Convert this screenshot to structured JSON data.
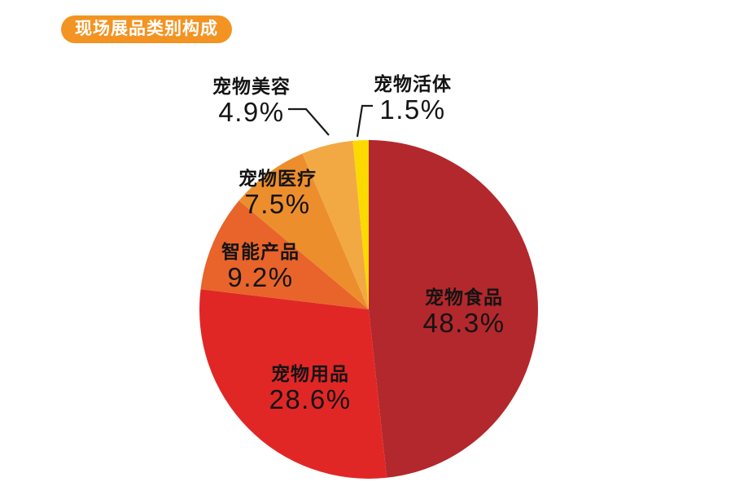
{
  "title_badge": {
    "text": "现场展品类别构成",
    "bg_color": "#F39322",
    "text_color": "#FFFFFF"
  },
  "colors": {
    "background": "#FFFFFF",
    "label_text": "#141414",
    "leader_line": "#1A1A1A"
  },
  "chart_data": {
    "type": "pie",
    "title": "现场展品类别构成",
    "legend": "none",
    "start_angle_deg": 0,
    "direction": "clockwise",
    "label_style": "category name above percentage, black text; two small slices use leader lines",
    "slices": [
      {
        "id": "pet-food",
        "name": "宠物食品",
        "value": 48.3,
        "pct_label": "48.3%",
        "color": "#B3282C"
      },
      {
        "id": "pet-supplies",
        "name": "宠物用品",
        "value": 28.6,
        "pct_label": "28.6%",
        "color": "#E12726"
      },
      {
        "id": "smart-products",
        "name": "智能产品",
        "value": 9.2,
        "pct_label": "9.2%",
        "color": "#E8642A"
      },
      {
        "id": "pet-medical",
        "name": "宠物医疗",
        "value": 7.5,
        "pct_label": "7.5%",
        "color": "#ED8E2D"
      },
      {
        "id": "pet-grooming",
        "name": "宠物美容",
        "value": 4.9,
        "pct_label": "4.9%",
        "color": "#F2A944"
      },
      {
        "id": "live-pets",
        "name": "宠物活体",
        "value": 1.5,
        "pct_label": "1.5%",
        "color": "#FCDA00"
      }
    ]
  }
}
